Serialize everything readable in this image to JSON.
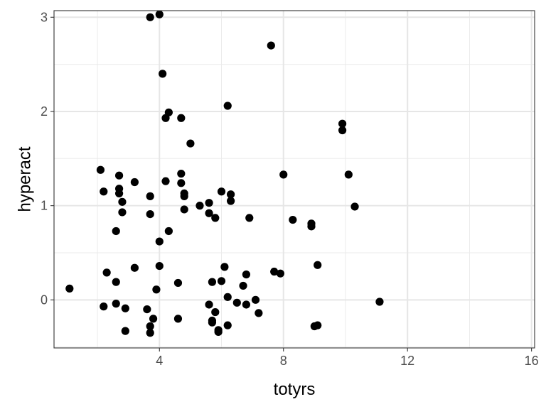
{
  "chart_data": {
    "type": "scatter",
    "xlabel": "totyrs",
    "ylabel": "hyperact",
    "xlim": [
      0.6,
      16.1
    ],
    "ylim": [
      -0.51,
      3.07
    ],
    "x_ticks": [
      4,
      8,
      12,
      16
    ],
    "y_ticks": [
      0,
      1,
      2,
      3
    ],
    "x_minor": [
      2,
      6,
      10,
      14
    ],
    "y_minor": [
      -0.5,
      0.5,
      1.5,
      2.5
    ],
    "grid": true,
    "legend": "none",
    "point_color": "#000000",
    "points": [
      {
        "x": 1.1,
        "y": 0.12
      },
      {
        "x": 2.1,
        "y": 1.38
      },
      {
        "x": 2.2,
        "y": 1.15
      },
      {
        "x": 2.3,
        "y": 0.29
      },
      {
        "x": 2.2,
        "y": -0.07
      },
      {
        "x": 2.6,
        "y": 0.19
      },
      {
        "x": 2.6,
        "y": -0.04
      },
      {
        "x": 2.6,
        "y": 0.73
      },
      {
        "x": 2.7,
        "y": 1.18
      },
      {
        "x": 2.7,
        "y": 1.13
      },
      {
        "x": 2.7,
        "y": 1.32
      },
      {
        "x": 2.8,
        "y": 1.04
      },
      {
        "x": 2.8,
        "y": 0.93
      },
      {
        "x": 2.9,
        "y": -0.09
      },
      {
        "x": 2.9,
        "y": -0.33
      },
      {
        "x": 3.2,
        "y": 1.25
      },
      {
        "x": 3.2,
        "y": 0.34
      },
      {
        "x": 3.6,
        "y": -0.1
      },
      {
        "x": 3.7,
        "y": 3.0
      },
      {
        "x": 3.7,
        "y": 1.1
      },
      {
        "x": 3.7,
        "y": 0.91
      },
      {
        "x": 3.7,
        "y": -0.28
      },
      {
        "x": 3.7,
        "y": -0.35
      },
      {
        "x": 3.8,
        "y": -0.2
      },
      {
        "x": 3.9,
        "y": 0.11
      },
      {
        "x": 4.0,
        "y": 3.03
      },
      {
        "x": 4.0,
        "y": 0.36
      },
      {
        "x": 4.0,
        "y": 0.62
      },
      {
        "x": 4.1,
        "y": 2.4
      },
      {
        "x": 4.2,
        "y": 1.93
      },
      {
        "x": 4.2,
        "y": 1.26
      },
      {
        "x": 4.3,
        "y": 1.99
      },
      {
        "x": 4.3,
        "y": 0.73
      },
      {
        "x": 4.6,
        "y": 0.18
      },
      {
        "x": 4.6,
        "y": -0.2
      },
      {
        "x": 4.7,
        "y": 1.93
      },
      {
        "x": 4.7,
        "y": 1.34
      },
      {
        "x": 4.7,
        "y": 1.24
      },
      {
        "x": 4.8,
        "y": 1.13
      },
      {
        "x": 4.8,
        "y": 1.1
      },
      {
        "x": 4.8,
        "y": 0.96
      },
      {
        "x": 5.0,
        "y": 1.66
      },
      {
        "x": 5.3,
        "y": 1.0
      },
      {
        "x": 5.6,
        "y": 1.03
      },
      {
        "x": 5.6,
        "y": 0.92
      },
      {
        "x": 5.6,
        "y": -0.05
      },
      {
        "x": 5.7,
        "y": 0.19
      },
      {
        "x": 5.7,
        "y": -0.22
      },
      {
        "x": 5.7,
        "y": -0.24
      },
      {
        "x": 5.8,
        "y": -0.13
      },
      {
        "x": 5.8,
        "y": 0.87
      },
      {
        "x": 5.9,
        "y": -0.32
      },
      {
        "x": 5.9,
        "y": -0.34
      },
      {
        "x": 6.0,
        "y": 1.15
      },
      {
        "x": 6.0,
        "y": 0.2
      },
      {
        "x": 6.1,
        "y": 0.35
      },
      {
        "x": 6.2,
        "y": 2.06
      },
      {
        "x": 6.2,
        "y": 0.03
      },
      {
        "x": 6.2,
        "y": -0.27
      },
      {
        "x": 6.3,
        "y": 1.12
      },
      {
        "x": 6.3,
        "y": 1.05
      },
      {
        "x": 6.5,
        "y": -0.03
      },
      {
        "x": 6.7,
        "y": 0.15
      },
      {
        "x": 6.8,
        "y": 0.27
      },
      {
        "x": 6.8,
        "y": -0.05
      },
      {
        "x": 6.9,
        "y": 0.87
      },
      {
        "x": 7.1,
        "y": 0.0
      },
      {
        "x": 7.2,
        "y": -0.14
      },
      {
        "x": 7.6,
        "y": 2.7
      },
      {
        "x": 7.7,
        "y": 0.3
      },
      {
        "x": 7.9,
        "y": 0.28
      },
      {
        "x": 8.0,
        "y": 1.33
      },
      {
        "x": 8.3,
        "y": 0.85
      },
      {
        "x": 8.9,
        "y": 0.81
      },
      {
        "x": 8.9,
        "y": 0.78
      },
      {
        "x": 9.0,
        "y": -0.28
      },
      {
        "x": 9.1,
        "y": -0.27
      },
      {
        "x": 9.1,
        "y": 0.37
      },
      {
        "x": 9.9,
        "y": 1.87
      },
      {
        "x": 9.9,
        "y": 1.8
      },
      {
        "x": 10.1,
        "y": 1.33
      },
      {
        "x": 10.3,
        "y": 0.99
      },
      {
        "x": 11.1,
        "y": -0.02
      }
    ]
  }
}
